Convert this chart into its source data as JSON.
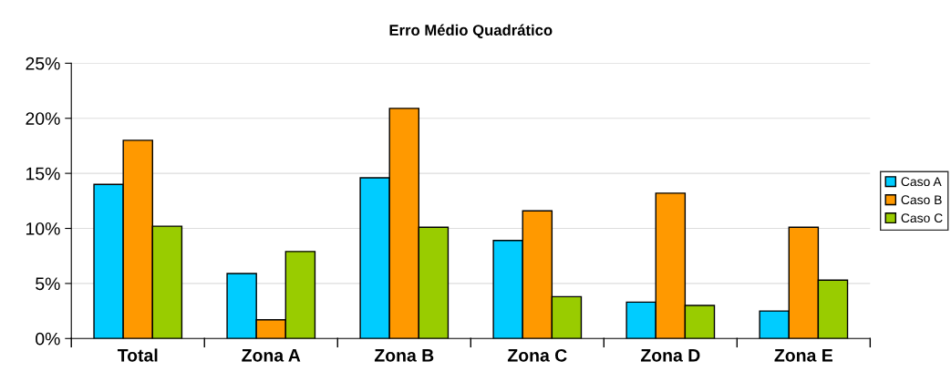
{
  "chart_data": {
    "type": "bar",
    "title": "Erro Médio Quadrático",
    "categories": [
      "Total",
      "Zona A",
      "Zona B",
      "Zona C",
      "Zona D",
      "Zona E"
    ],
    "series": [
      {
        "name": "Caso A",
        "color": "#00ccff",
        "values": [
          14.0,
          5.9,
          14.6,
          8.9,
          3.3,
          2.5
        ]
      },
      {
        "name": "Caso B",
        "color": "#ff9900",
        "values": [
          18.0,
          1.7,
          20.9,
          11.6,
          13.2,
          10.1
        ]
      },
      {
        "name": "Caso C",
        "color": "#99cc00",
        "values": [
          10.2,
          7.9,
          10.1,
          3.8,
          3.0,
          5.3
        ]
      }
    ],
    "ylim": [
      0,
      25
    ],
    "yticks": [
      {
        "value": 0,
        "label": "0%"
      },
      {
        "value": 5,
        "label": "5%"
      },
      {
        "value": 10,
        "label": "10%"
      },
      {
        "value": 15,
        "label": "15%"
      },
      {
        "value": 20,
        "label": "20%"
      },
      {
        "value": 25,
        "label": "25%"
      }
    ],
    "grid": "y",
    "legend": "right"
  }
}
